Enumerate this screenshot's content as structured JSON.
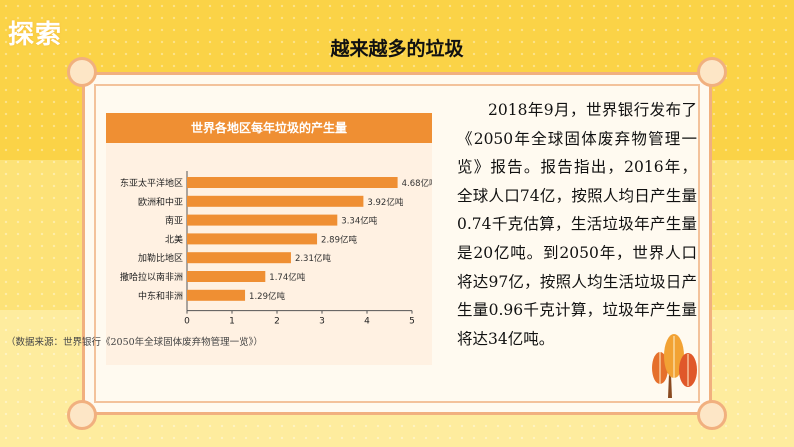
{
  "header": {
    "section_label": "探索",
    "title": "越来越多的垃圾"
  },
  "chart": {
    "source": "（数据来源：世界银行《2050年全球固体废弃物管理一览》）"
  },
  "chart_data": {
    "type": "bar",
    "orientation": "horizontal",
    "title": "世界各地区每年垃圾的产生量",
    "categories": [
      "东亚太平洋地区",
      "欧洲和中亚",
      "南亚",
      "北美",
      "加勒比地区",
      "撒哈拉以南非洲",
      "中东和非洲"
    ],
    "values": [
      4.68,
      3.92,
      3.34,
      2.89,
      2.31,
      1.74,
      1.29
    ],
    "value_labels": [
      "4.68亿吨",
      "3.92亿吨",
      "3.34亿吨",
      "2.89亿吨",
      "2.31亿吨",
      "1.74亿吨",
      "1.29亿吨"
    ],
    "xlim": [
      0,
      5
    ],
    "xticks": [
      "0",
      "1",
      "2",
      "3",
      "4",
      "5"
    ],
    "xlabel": "",
    "ylabel": "",
    "grid": false,
    "color": "#ef8f33"
  },
  "body_text": "2018年9月，世界银行发布了《2050年全球固体废弃物管理一览》报告。报告指出，2016年，全球人口74亿，按照人均日产生量0.74千克估算，生活垃圾年产生量是20亿吨。到2050年，世界人口将达97亿，按照人均生活垃圾日产生量0.96千克计算，垃圾年产生量将达34亿吨。",
  "colors": {
    "accent": "#ef8f33",
    "frame": "#f1b07f",
    "background": "#fbd347"
  }
}
